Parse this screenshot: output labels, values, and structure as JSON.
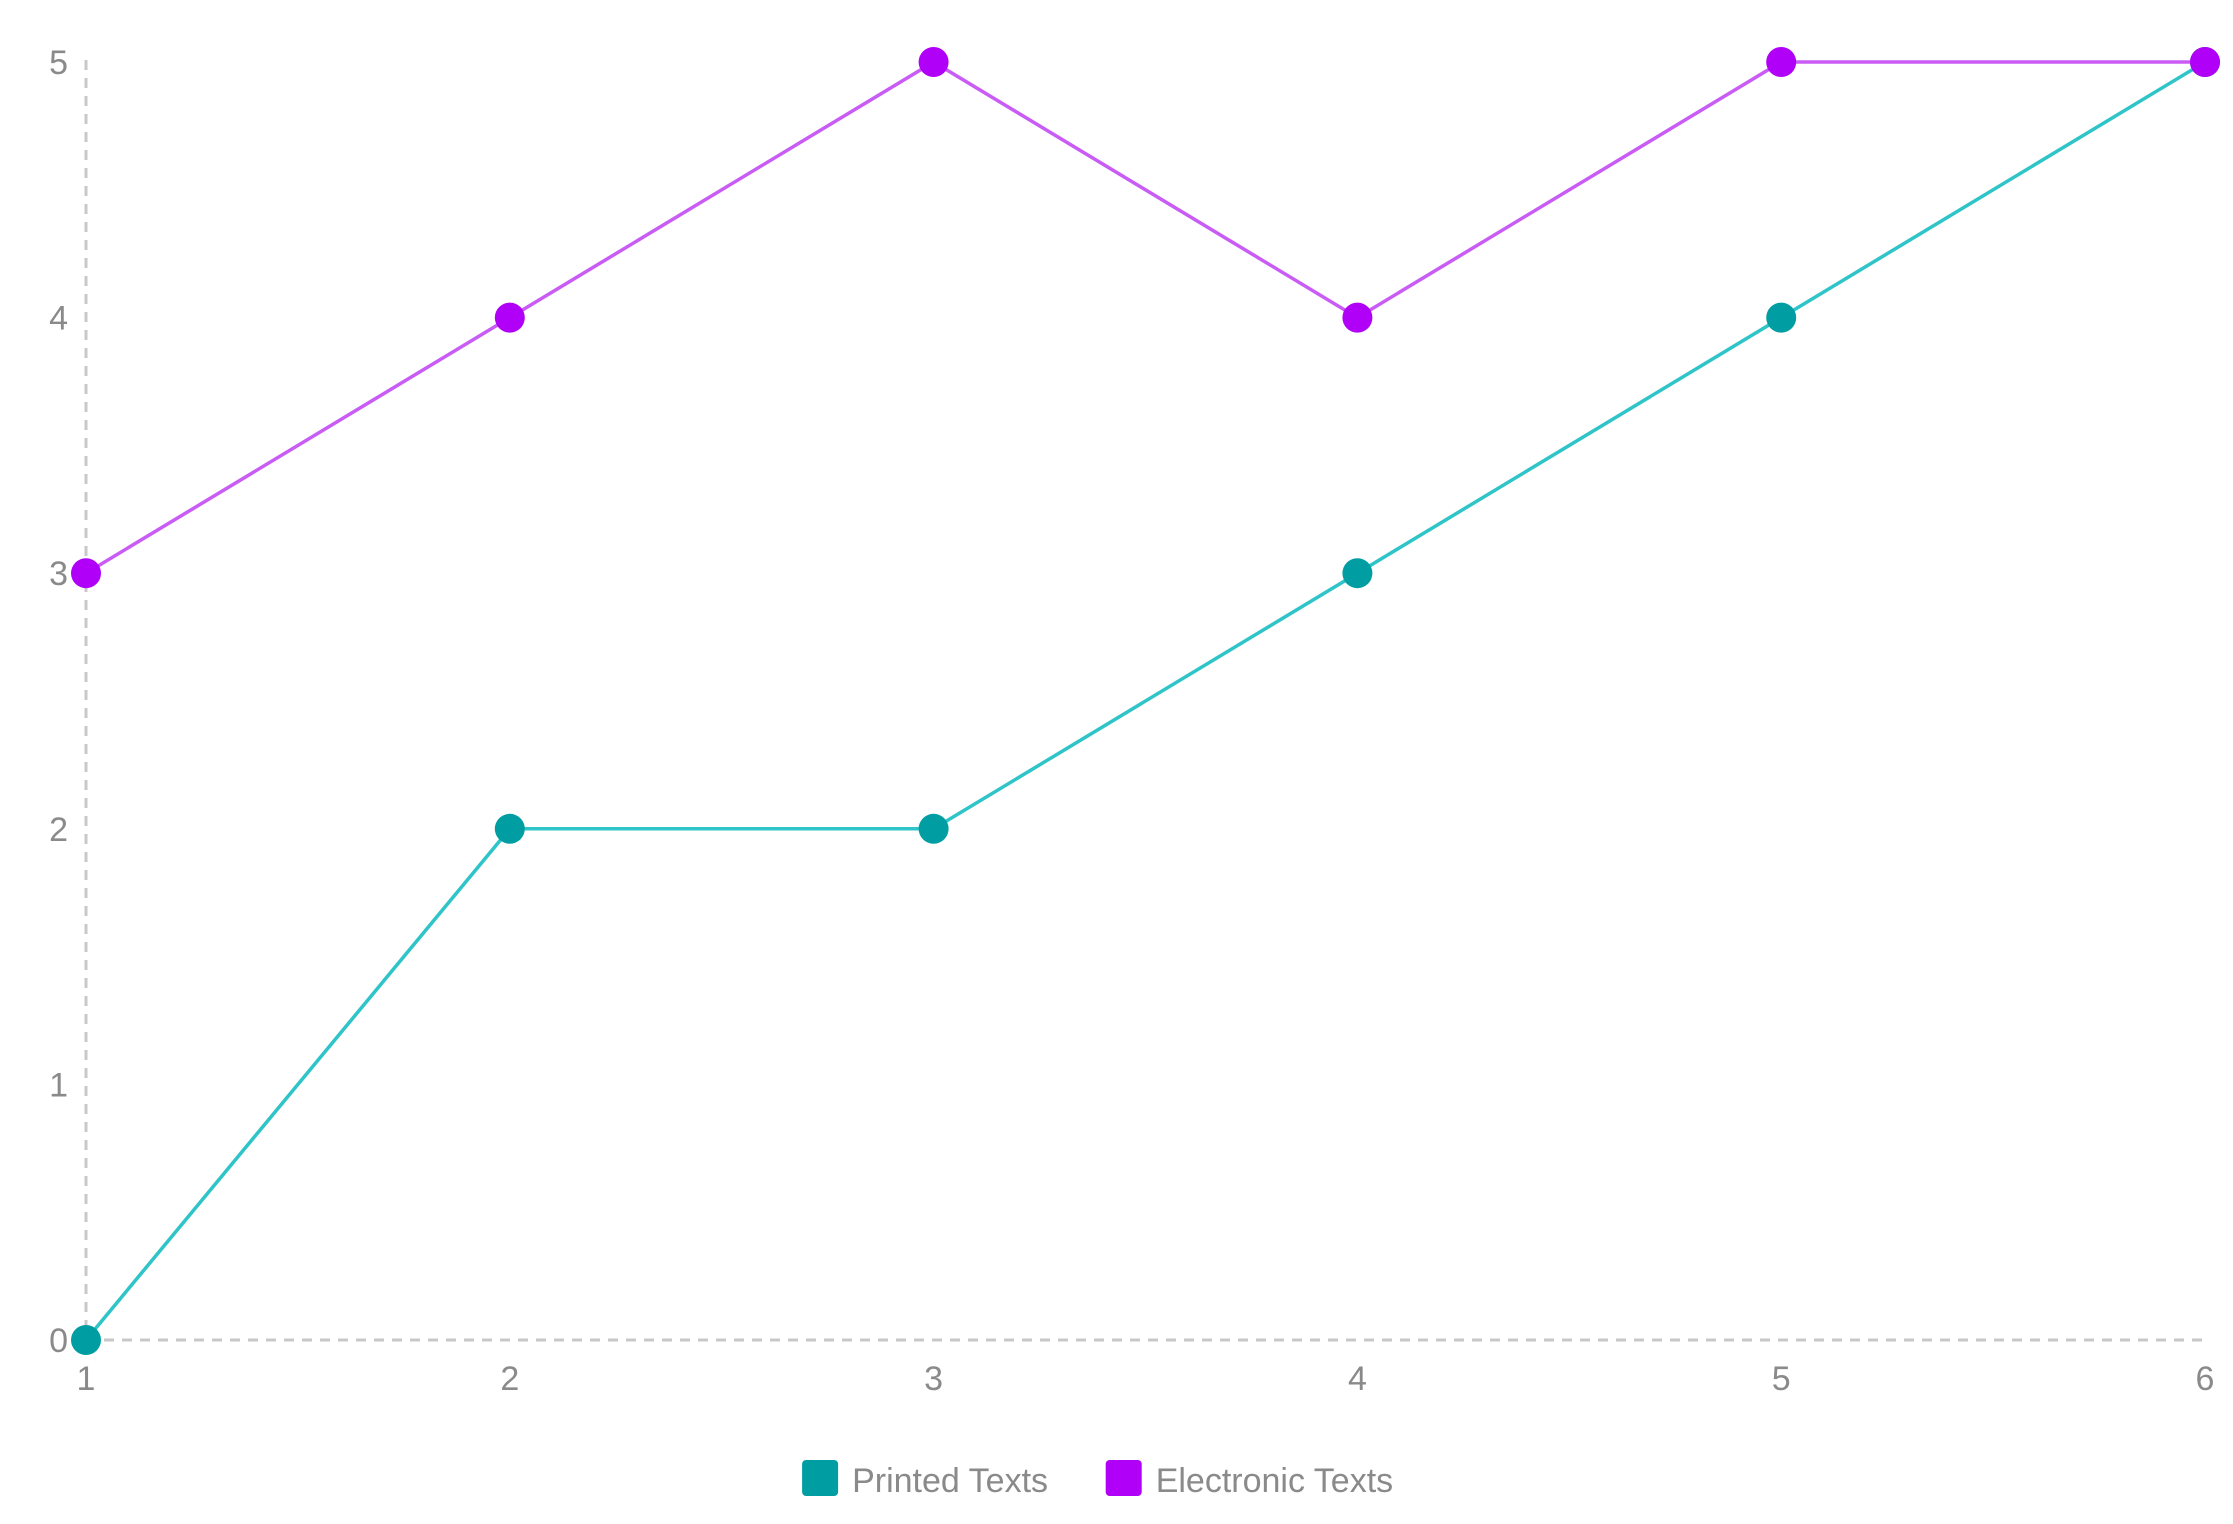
{
  "chart_data": {
    "type": "line",
    "title": "",
    "xlabel": "",
    "ylabel": "",
    "x": [
      1,
      2,
      3,
      4,
      5,
      6
    ],
    "x_ticks": [
      "1",
      "2",
      "3",
      "4",
      "5",
      "6"
    ],
    "y_ticks": [
      "0",
      "1",
      "2",
      "3",
      "4",
      "5"
    ],
    "xlim": [
      1,
      6
    ],
    "ylim": [
      0,
      5
    ],
    "grid": false,
    "axis_style": "dashed",
    "legend_position": "bottom-center",
    "series": [
      {
        "name": "Printed Texts",
        "values": [
          0,
          2,
          2,
          3,
          4,
          5
        ],
        "line_color": "#2ec4c8",
        "marker_color": "#009ea3"
      },
      {
        "name": "Electronic Texts",
        "values": [
          3,
          4,
          5,
          4,
          5,
          5
        ],
        "line_color": "#c85cf5",
        "marker_color": "#b000f7"
      }
    ]
  }
}
